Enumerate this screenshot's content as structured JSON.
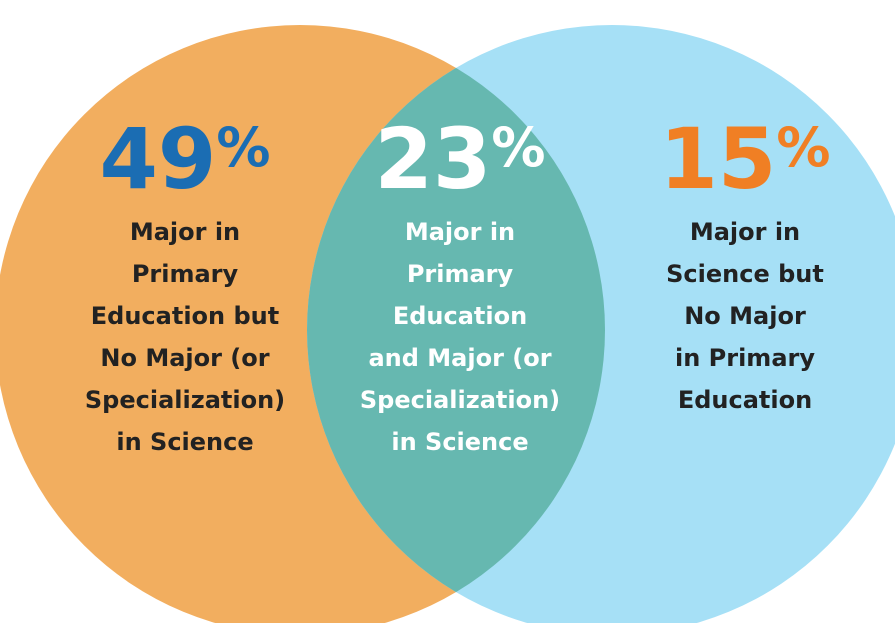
{
  "regions": [
    {
      "number": "49",
      "unit": "%",
      "label_lines": [
        "Major in",
        "Primary",
        "Education but",
        "No Major (or",
        "Specialization)",
        "in Science"
      ]
    },
    {
      "number": "23",
      "unit": "%",
      "label_lines": [
        "Major in",
        "Primary",
        "Education",
        "and Major (or",
        "Specialization)",
        "in Science"
      ]
    },
    {
      "number": "15",
      "unit": "%",
      "label_lines": [
        "Major in",
        "Science but",
        "No Major",
        "in Primary",
        "Education"
      ]
    }
  ]
}
